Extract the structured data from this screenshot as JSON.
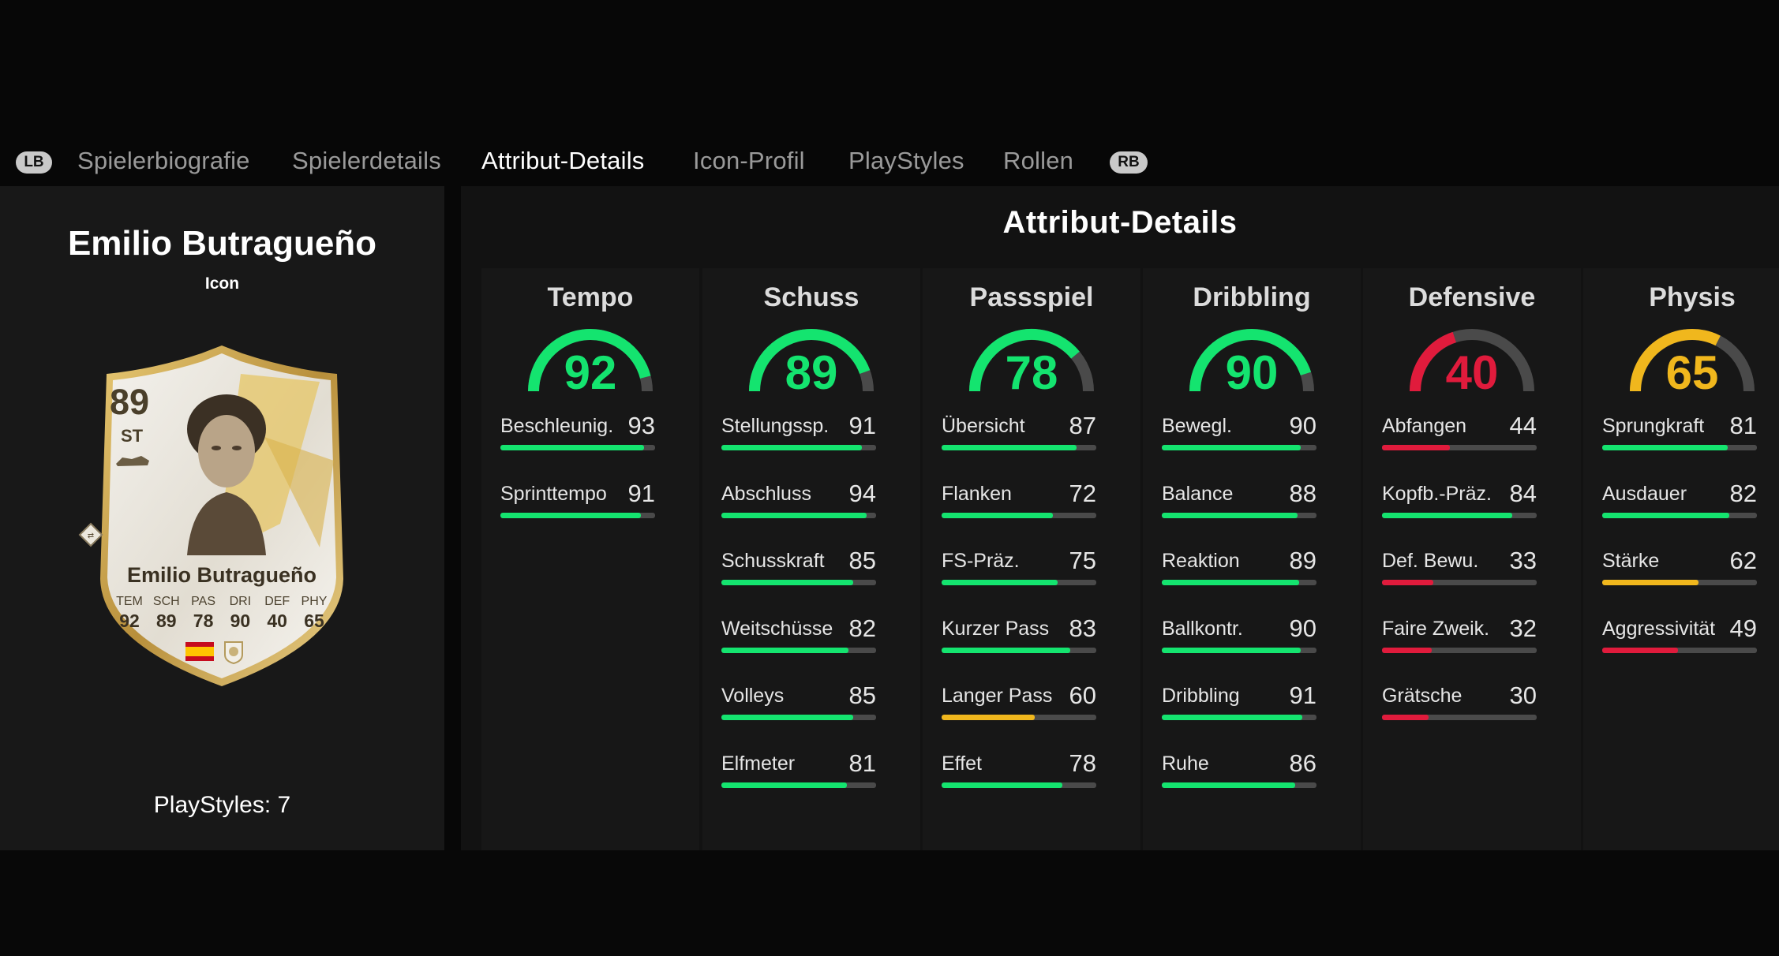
{
  "tabs": {
    "prev_button": "LB",
    "next_button": "RB",
    "items": [
      {
        "label": "Spielerbiografie",
        "active": false
      },
      {
        "label": "Spielerdetails",
        "active": false
      },
      {
        "label": "Attribut-Details",
        "active": true
      },
      {
        "label": "Icon-Profil",
        "active": false
      },
      {
        "label": "PlayStyles",
        "active": false
      },
      {
        "label": "Rollen",
        "active": false
      }
    ]
  },
  "player": {
    "name": "Emilio Butragueño",
    "type": "Icon",
    "playstyles_label": "PlayStyles: 7",
    "card": {
      "rating": "89",
      "position": "ST",
      "name": "Emilio Butragueño",
      "stats": [
        {
          "label": "TEM",
          "value": "92"
        },
        {
          "label": "SCH",
          "value": "89"
        },
        {
          "label": "PAS",
          "value": "78"
        },
        {
          "label": "DRI",
          "value": "90"
        },
        {
          "label": "DEF",
          "value": "40"
        },
        {
          "label": "PHY",
          "value": "65"
        }
      ]
    }
  },
  "panel": {
    "title": "Attribut-Details",
    "colors": {
      "green": "#14e46f",
      "red": "#e01b3c",
      "yellow": "#f0b71d",
      "track": "#4a4a4a"
    },
    "categories": [
      {
        "name": "Tempo",
        "value": 92,
        "color": "green",
        "attributes": [
          {
            "name": "Beschleunig.",
            "value": 93,
            "color": "green"
          },
          {
            "name": "Sprinttempo",
            "value": 91,
            "color": "green"
          }
        ]
      },
      {
        "name": "Schuss",
        "value": 89,
        "color": "green",
        "attributes": [
          {
            "name": "Stellungssp.",
            "value": 91,
            "color": "green"
          },
          {
            "name": "Abschluss",
            "value": 94,
            "color": "green"
          },
          {
            "name": "Schusskraft",
            "value": 85,
            "color": "green"
          },
          {
            "name": "Weitschüsse",
            "value": 82,
            "color": "green"
          },
          {
            "name": "Volleys",
            "value": 85,
            "color": "green"
          },
          {
            "name": "Elfmeter",
            "value": 81,
            "color": "green"
          }
        ]
      },
      {
        "name": "Passspiel",
        "value": 78,
        "color": "green",
        "attributes": [
          {
            "name": "Übersicht",
            "value": 87,
            "color": "green"
          },
          {
            "name": "Flanken",
            "value": 72,
            "color": "green"
          },
          {
            "name": "FS-Präz.",
            "value": 75,
            "color": "green"
          },
          {
            "name": "Kurzer Pass",
            "value": 83,
            "color": "green"
          },
          {
            "name": "Langer Pass",
            "value": 60,
            "color": "yellow"
          },
          {
            "name": "Effet",
            "value": 78,
            "color": "green"
          }
        ]
      },
      {
        "name": "Dribbling",
        "value": 90,
        "color": "green",
        "attributes": [
          {
            "name": "Bewegl.",
            "value": 90,
            "color": "green"
          },
          {
            "name": "Balance",
            "value": 88,
            "color": "green"
          },
          {
            "name": "Reaktion",
            "value": 89,
            "color": "green"
          },
          {
            "name": "Ballkontr.",
            "value": 90,
            "color": "green"
          },
          {
            "name": "Dribbling",
            "value": 91,
            "color": "green"
          },
          {
            "name": "Ruhe",
            "value": 86,
            "color": "green"
          }
        ]
      },
      {
        "name": "Defensive",
        "value": 40,
        "color": "red",
        "attributes": [
          {
            "name": "Abfangen",
            "value": 44,
            "color": "red"
          },
          {
            "name": "Kopfb.-Präz.",
            "value": 84,
            "color": "green"
          },
          {
            "name": "Def. Bewu.",
            "value": 33,
            "color": "red"
          },
          {
            "name": "Faire Zweik.",
            "value": 32,
            "color": "red"
          },
          {
            "name": "Grätsche",
            "value": 30,
            "color": "red"
          }
        ]
      },
      {
        "name": "Physis",
        "value": 65,
        "color": "yellow",
        "attributes": [
          {
            "name": "Sprungkraft",
            "value": 81,
            "color": "green"
          },
          {
            "name": "Ausdauer",
            "value": 82,
            "color": "green"
          },
          {
            "name": "Stärke",
            "value": 62,
            "color": "yellow"
          },
          {
            "name": "Aggressivität",
            "value": 49,
            "color": "red"
          }
        ]
      }
    ]
  }
}
